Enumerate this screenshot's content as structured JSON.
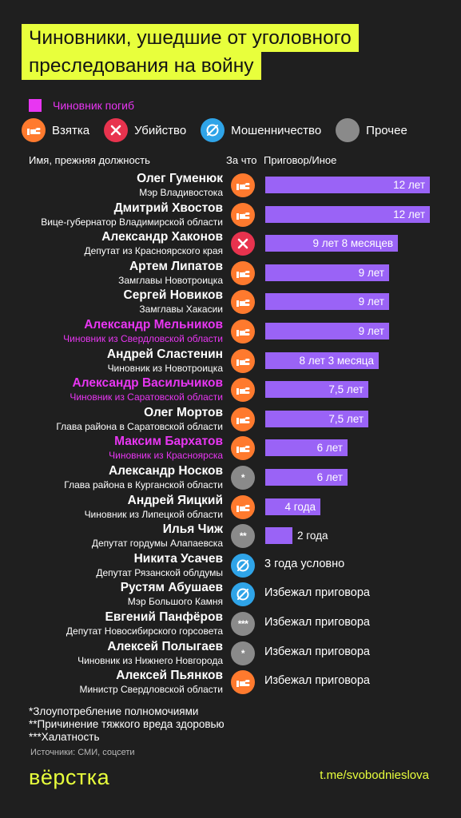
{
  "title_lines": [
    "Чиновники, ушедшие от уголовного",
    "преследования на войну"
  ],
  "legend": {
    "dead_label": "Чиновник погиб",
    "types": [
      {
        "key": "bribe",
        "label": "Взятка",
        "icon": "ruble-hand-icon"
      },
      {
        "key": "murder",
        "label": "Убийство",
        "icon": "x-icon"
      },
      {
        "key": "fraud",
        "label": "Мошенничество",
        "icon": "slashed-circle-icon"
      },
      {
        "key": "other",
        "label": "Прочее",
        "icon": "plain-circle-icon"
      }
    ]
  },
  "columns": {
    "name": "Имя, прежняя должность",
    "reason": "За что",
    "sentence": "Приговор/Иное"
  },
  "colors": {
    "bar": "#9a63f6",
    "dead": "#e836f2",
    "accent": "#e8ff3c",
    "bribe": "#ff7a2e",
    "murder": "#e8334e",
    "fraud": "#2fa4e8",
    "other": "#8a8a8a"
  },
  "chart_data": {
    "type": "bar",
    "unit": "years",
    "rows": [
      {
        "name": "Олег Гуменюк",
        "role": "Мэр Владивостока",
        "reason": "bribe",
        "dead": false,
        "years": 12,
        "label": "12 лет"
      },
      {
        "name": "Дмитрий Хвостов",
        "role": "Вице-губернатор Владимирской области",
        "reason": "bribe",
        "dead": false,
        "years": 12,
        "label": "12 лет"
      },
      {
        "name": "Александр Хаконов",
        "role": "Депутат из Красноярского края",
        "reason": "murder",
        "dead": false,
        "years": 9.667,
        "label": "9 лет 8 месяцев"
      },
      {
        "name": "Артем Липатов",
        "role": "Замглавы Новотроицка",
        "reason": "bribe",
        "dead": false,
        "years": 9,
        "label": "9 лет"
      },
      {
        "name": "Сергей Новиков",
        "role": "Замглавы Хакасии",
        "reason": "bribe",
        "dead": false,
        "years": 9,
        "label": "9 лет"
      },
      {
        "name": "Александр Мельников",
        "role": "Чиновник из Свердловской области",
        "reason": "bribe",
        "dead": true,
        "years": 9,
        "label": "9 лет"
      },
      {
        "name": "Андрей Сластенин",
        "role": "Чиновник из Новотроицка",
        "reason": "bribe",
        "dead": false,
        "years": 8.25,
        "label": "8 лет 3 месяца"
      },
      {
        "name": "Александр Васильчиков",
        "role": "Чиновник из Саратовской области",
        "reason": "bribe",
        "dead": true,
        "years": 7.5,
        "label": "7,5 лет"
      },
      {
        "name": "Олег Мортов",
        "role": "Глава района в Саратовской области",
        "reason": "bribe",
        "dead": false,
        "years": 7.5,
        "label": "7,5 лет"
      },
      {
        "name": "Максим Бархатов",
        "role": "Чиновник из Красноярска",
        "reason": "bribe",
        "dead": true,
        "years": 6,
        "label": "6 лет"
      },
      {
        "name": "Александр Носков",
        "role": "Глава района в Курганской области",
        "reason": "other",
        "mark": "*",
        "dead": false,
        "years": 6,
        "label": "6 лет"
      },
      {
        "name": "Андрей Яицкий",
        "role": "Чиновник из Липецкой области",
        "reason": "bribe",
        "dead": false,
        "years": 4,
        "label": "4 года"
      },
      {
        "name": "Илья Чиж",
        "role": "Депутат гордумы Алапаевска",
        "reason": "other",
        "mark": "**",
        "dead": false,
        "years": 2,
        "label": "2 года"
      },
      {
        "name": "Никита Усачев",
        "role": "Депутат Рязанской облдумы",
        "reason": "fraud",
        "dead": false,
        "years": null,
        "label": "3 года условно"
      },
      {
        "name": "Рустям Абушаев",
        "role": "Мэр Большого Камня",
        "reason": "fraud",
        "dead": false,
        "years": null,
        "label": "Избежал приговора"
      },
      {
        "name": "Евгений Панфёров",
        "role": "Депутат Новосибирского горсовета",
        "reason": "other",
        "mark": "***",
        "dead": false,
        "years": null,
        "label": "Избежал приговора"
      },
      {
        "name": "Алексей Полыгаев",
        "role": "Чиновник из Нижнего Новгорода",
        "reason": "other",
        "mark": "*",
        "dead": false,
        "years": null,
        "label": "Избежал приговора"
      },
      {
        "name": "Алексей Пьянков",
        "role": "Министр Свердловской области",
        "reason": "bribe",
        "dead": false,
        "years": null,
        "label": "Избежал приговора"
      }
    ]
  },
  "footnotes": [
    "*Злоупотребление полномочиями",
    "**Причинение тяжкого вреда здоровью",
    "***Халатность"
  ],
  "sources": "Источники: СМИ, соцсети",
  "logo": "вёрстка",
  "telegram": "t.me/svobodnieslova"
}
